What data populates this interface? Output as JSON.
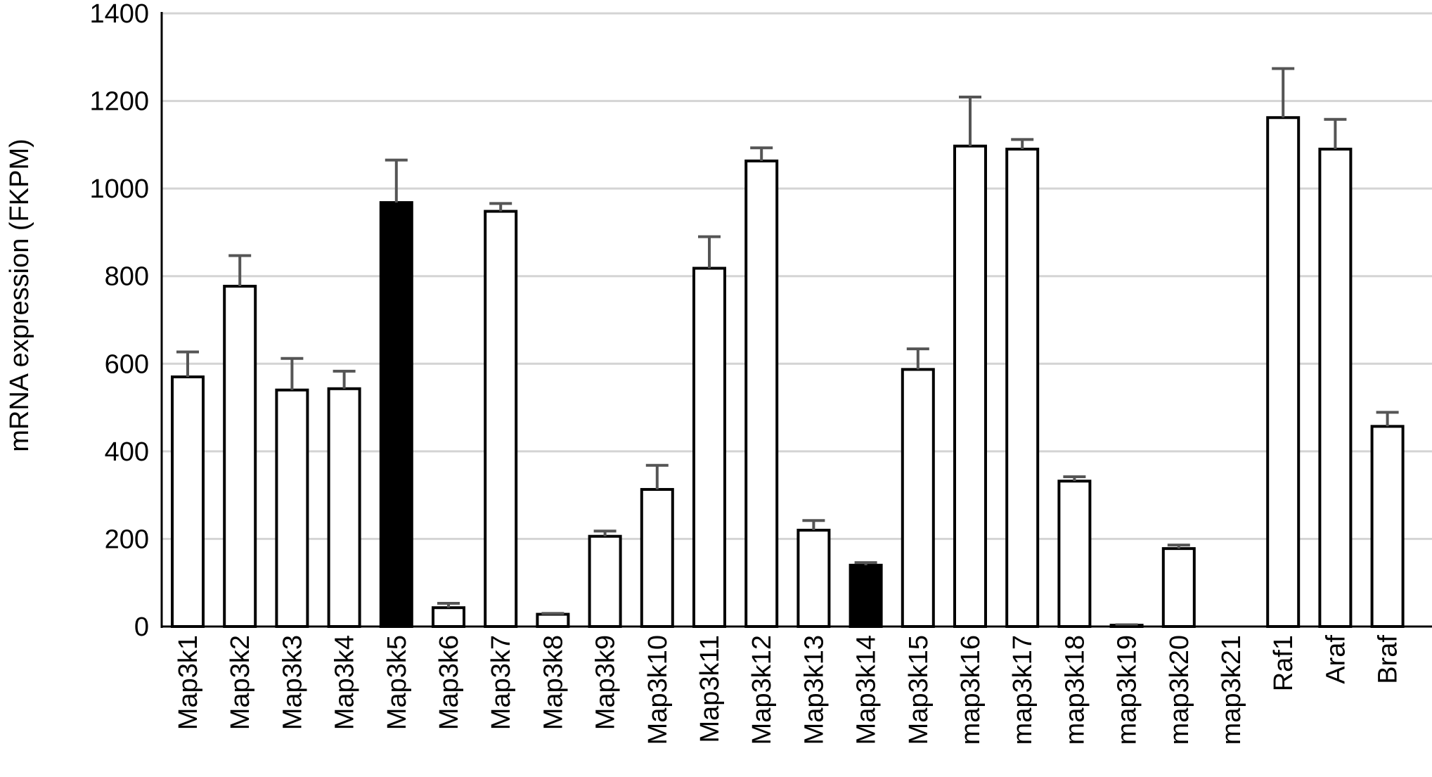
{
  "chart_data": {
    "type": "bar",
    "title": "",
    "xlabel": "",
    "ylabel": "mRNA expression (FKPM)",
    "ylim": [
      0,
      1400
    ],
    "yticks": [
      0,
      200,
      400,
      600,
      800,
      1000,
      1200,
      1400
    ],
    "grid": true,
    "categories": [
      "Map3k1",
      "Map3k2",
      "Map3k3",
      "Map3k4",
      "Map3k5",
      "Map3k6",
      "Map3k7",
      "Map3k8",
      "Map3k9",
      "Map3k10",
      "Map3k11",
      "Map3k12",
      "Map3k13",
      "Map3k14",
      "Map3k15",
      "map3k16",
      "map3k17",
      "map3k18",
      "map3k19",
      "map3k20",
      "map3k21",
      "Raf1",
      "Araf",
      "Braf"
    ],
    "values": [
      570,
      777,
      540,
      543,
      968,
      43,
      948,
      28,
      206,
      313,
      818,
      1063,
      220,
      140,
      587,
      1097,
      1090,
      332,
      3,
      178,
      0,
      1162,
      1090,
      457
    ],
    "errors": [
      57,
      70,
      72,
      40,
      97,
      10,
      18,
      2,
      12,
      55,
      72,
      30,
      22,
      6,
      47,
      112,
      22,
      10,
      1,
      8,
      0,
      112,
      68,
      32
    ],
    "highlighted": [
      "Map3k5",
      "Map3k14"
    ],
    "colors": {
      "bar": "#ffffff",
      "highlight": "#000000",
      "outline": "#000000",
      "error": "#555555",
      "grid": "#d4d4d4"
    }
  }
}
